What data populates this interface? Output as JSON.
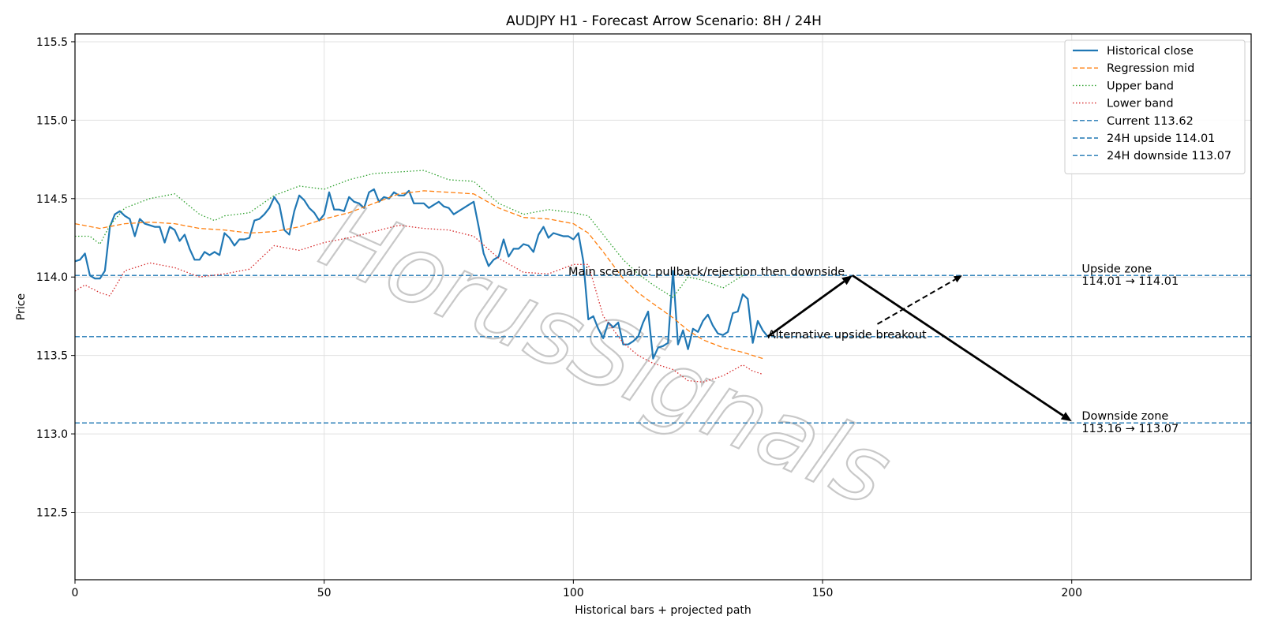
{
  "chart_data": {
    "type": "line",
    "title": "AUDJPY H1 - Forecast Arrow Scenario: 8H / 24H",
    "xlabel": "Historical bars + projected path",
    "ylabel": "Price",
    "xlim": [
      0,
      236
    ],
    "ylim": [
      112.07,
      115.55
    ],
    "xticks": [
      "0",
      "50",
      "100",
      "150",
      "200"
    ],
    "yticks": [
      "112.5",
      "113.0",
      "113.5",
      "114.0",
      "114.5",
      "115.0",
      "115.5"
    ],
    "grid": true,
    "legend_position": "upper right",
    "watermark": "HorusSignals",
    "series": [
      {
        "name": "Historical close",
        "style": "solid",
        "color": "#1f77b4",
        "x": [
          0,
          1,
          2,
          3,
          4,
          5,
          6,
          7,
          8,
          9,
          10,
          11,
          12,
          13,
          14,
          15,
          16,
          17,
          18,
          19,
          20,
          21,
          22,
          23,
          24,
          25,
          26,
          27,
          28,
          29,
          30,
          31,
          32,
          33,
          34,
          35,
          36,
          37,
          38,
          39,
          40,
          41,
          42,
          43,
          44,
          45,
          46,
          47,
          48,
          49,
          50,
          51,
          52,
          53,
          54,
          55,
          56,
          57,
          58,
          59,
          60,
          61,
          62,
          63,
          64,
          65,
          66,
          67,
          68,
          69,
          70,
          71,
          72,
          73,
          74,
          75,
          76,
          77,
          78,
          79,
          80,
          81,
          82,
          83,
          84,
          85,
          86,
          87,
          88,
          89,
          90,
          91,
          92,
          93,
          94,
          95,
          96,
          97,
          98,
          99,
          100,
          101,
          102,
          103,
          104,
          105,
          106,
          107,
          108,
          109,
          110,
          111,
          112,
          113,
          114,
          115,
          116,
          117,
          118,
          119,
          120,
          121,
          122,
          123,
          124,
          125,
          126,
          127,
          128,
          129,
          130,
          131,
          132,
          133,
          134,
          135,
          136,
          137,
          138,
          139
        ],
        "values": [
          114.1,
          114.11,
          114.15,
          114.01,
          113.99,
          113.99,
          114.04,
          114.32,
          114.4,
          114.42,
          114.39,
          114.37,
          114.26,
          114.37,
          114.34,
          114.33,
          114.32,
          114.32,
          114.22,
          114.32,
          114.3,
          114.23,
          114.27,
          114.18,
          114.11,
          114.11,
          114.16,
          114.14,
          114.16,
          114.14,
          114.28,
          114.25,
          114.2,
          114.24,
          114.24,
          114.25,
          114.36,
          114.37,
          114.4,
          114.44,
          114.51,
          114.46,
          114.3,
          114.27,
          114.42,
          114.52,
          114.49,
          114.44,
          114.41,
          114.36,
          114.4,
          114.54,
          114.43,
          114.43,
          114.42,
          114.51,
          114.48,
          114.47,
          114.44,
          114.54,
          114.56,
          114.48,
          114.51,
          114.5,
          114.54,
          114.52,
          114.52,
          114.55,
          114.47,
          114.47,
          114.47,
          114.44,
          114.46,
          114.48,
          114.45,
          114.44,
          114.4,
          114.42,
          114.44,
          114.46,
          114.48,
          114.32,
          114.15,
          114.07,
          114.11,
          114.13,
          114.24,
          114.13,
          114.18,
          114.18,
          114.21,
          114.2,
          114.16,
          114.27,
          114.32,
          114.25,
          114.28,
          114.27,
          114.26,
          114.26,
          114.24,
          114.28,
          114.1,
          113.73,
          113.75,
          113.67,
          113.61,
          113.71,
          113.68,
          113.71,
          113.57,
          113.57,
          113.59,
          113.62,
          113.71,
          113.78,
          113.48,
          113.55,
          113.56,
          113.58,
          114.04,
          113.57,
          113.66,
          113.54,
          113.67,
          113.65,
          113.72,
          113.76,
          113.69,
          113.64,
          113.63,
          113.65,
          113.77,
          113.78,
          113.89,
          113.86,
          113.58,
          113.72,
          113.66,
          113.62
        ]
      },
      {
        "name": "Regression mid",
        "style": "dashed",
        "color": "#ff7f0e",
        "x": [
          0,
          5,
          10,
          15,
          20,
          25,
          30,
          35,
          40,
          45,
          50,
          55,
          60,
          65,
          70,
          75,
          80,
          85,
          90,
          95,
          100,
          103,
          106,
          110,
          113,
          116,
          120,
          123,
          126,
          130,
          134,
          138
        ],
        "values": [
          114.34,
          114.31,
          114.34,
          114.35,
          114.34,
          114.31,
          114.3,
          114.28,
          114.29,
          114.32,
          114.37,
          114.41,
          114.47,
          114.53,
          114.55,
          114.54,
          114.53,
          114.44,
          114.38,
          114.37,
          114.34,
          114.28,
          114.16,
          113.99,
          113.9,
          113.83,
          113.74,
          113.66,
          113.6,
          113.55,
          113.52,
          113.48
        ]
      },
      {
        "name": "Upper band",
        "style": "dotted",
        "color": "#2ca02c",
        "x": [
          0,
          3,
          5,
          7,
          10,
          15,
          20,
          25,
          28,
          30,
          35,
          40,
          45,
          50,
          55,
          60,
          65,
          70,
          75,
          80,
          85,
          90,
          95,
          100,
          103,
          106,
          110,
          113,
          116,
          120,
          123,
          126,
          130,
          134
        ],
        "values": [
          114.26,
          114.26,
          114.21,
          114.33,
          114.44,
          114.5,
          114.53,
          114.4,
          114.36,
          114.39,
          114.41,
          114.52,
          114.58,
          114.56,
          114.62,
          114.66,
          114.67,
          114.68,
          114.62,
          114.61,
          114.47,
          114.4,
          114.43,
          114.41,
          114.39,
          114.27,
          114.11,
          114.02,
          113.95,
          113.87,
          114.0,
          113.98,
          113.93,
          114.01
        ]
      },
      {
        "name": "Lower band",
        "style": "dotted",
        "color": "#d62728",
        "x": [
          0,
          2,
          5,
          7,
          10,
          15,
          20,
          25,
          30,
          35,
          40,
          45,
          50,
          55,
          60,
          65,
          70,
          75,
          80,
          85,
          90,
          95,
          100,
          103,
          106,
          110,
          113,
          116,
          120,
          123,
          126,
          130,
          134,
          136,
          138
        ],
        "values": [
          113.91,
          113.95,
          113.9,
          113.88,
          114.04,
          114.09,
          114.06,
          114.0,
          114.02,
          114.05,
          114.2,
          114.17,
          114.22,
          114.25,
          114.29,
          114.33,
          114.31,
          114.3,
          114.26,
          114.12,
          114.03,
          114.02,
          114.08,
          114.08,
          113.75,
          113.58,
          113.5,
          113.45,
          113.41,
          113.34,
          113.33,
          113.37,
          113.44,
          113.4,
          113.38
        ]
      }
    ],
    "hlines": [
      {
        "name": "Current 113.62",
        "y": 113.62,
        "style": "dashed",
        "color": "#1f77b4"
      },
      {
        "name": "24H upside 114.01",
        "y": 114.01,
        "style": "dashed",
        "color": "#1f77b4"
      },
      {
        "name": "24H downside 113.07",
        "y": 113.07,
        "style": "dashed",
        "color": "#1f77b4"
      }
    ],
    "arrows": [
      {
        "style": "solid",
        "from": [
          139,
          113.62
        ],
        "to": [
          156,
          114.01
        ]
      },
      {
        "style": "solid",
        "from": [
          156,
          114.01
        ],
        "to": [
          200,
          113.08
        ]
      },
      {
        "style": "dashed",
        "from": [
          161,
          113.7
        ],
        "to": [
          178,
          114.01
        ]
      }
    ],
    "annotations": [
      {
        "text": "Main scenario: pullback/rejection then downside",
        "x": 99,
        "y": 114.01
      },
      {
        "text": "Alternative upside breakout",
        "x": 139,
        "y": 113.61
      },
      {
        "text": "Upside zone",
        "x": 202,
        "y": 114.03
      },
      {
        "text": "114.01 → 114.01",
        "x": 202,
        "y": 113.95
      },
      {
        "text": "Downside zone",
        "x": 202,
        "y": 113.09
      },
      {
        "text": "113.16 → 113.07",
        "x": 202,
        "y": 113.01
      }
    ]
  }
}
